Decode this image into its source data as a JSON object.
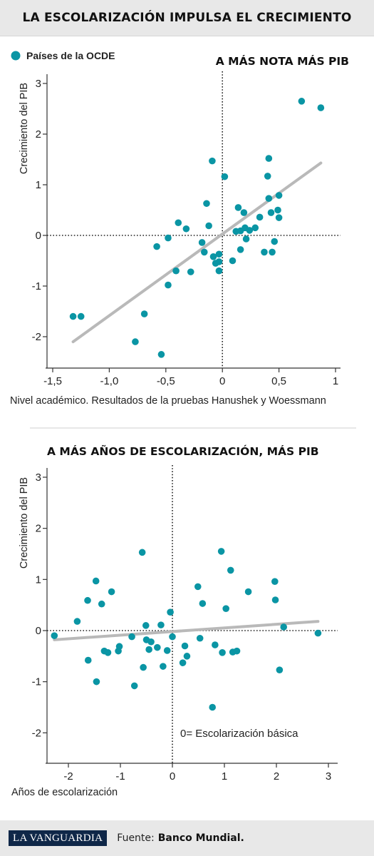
{
  "header": {
    "title": "LA ESCOLARIZACIÓN IMPULSA EL CRECIMIENTO"
  },
  "legend": {
    "label": "Países de la OCDE",
    "color": "#0a95a4"
  },
  "colors": {
    "point": "#0a95a4",
    "trend": "#b9b9b9",
    "axis": "#333333"
  },
  "chart_data": [
    {
      "type": "scatter",
      "title": "A MÁS NOTA MÁS PIB",
      "xlabel": "Nivel académico. Resultados de la pruebas Hanushek y Woessmann",
      "ylabel": "Crecimiento del PIB",
      "xlim": [
        -1.5,
        1.0
      ],
      "ylim": [
        -2.4,
        3.0
      ],
      "xticks": [
        -1.5,
        -1.0,
        -0.5,
        0,
        0.5,
        1
      ],
      "xtick_labels": [
        "-1,5",
        "-1,0",
        "-0,5",
        "0",
        "0,5",
        "1"
      ],
      "yticks": [
        -2,
        -1,
        0,
        1,
        2,
        3
      ],
      "ytick_labels": [
        "-2",
        "-1",
        "0",
        "1",
        "2",
        "3"
      ],
      "trend": {
        "x": [
          -1.32,
          0.87
        ],
        "y": [
          -2.1,
          1.43
        ]
      },
      "points": [
        [
          -1.32,
          -1.6
        ],
        [
          -1.25,
          -1.6
        ],
        [
          -0.77,
          -2.1
        ],
        [
          -0.69,
          -1.55
        ],
        [
          -0.54,
          -2.35
        ],
        [
          -0.58,
          -0.22
        ],
        [
          -0.48,
          -0.05
        ],
        [
          -0.48,
          -0.98
        ],
        [
          -0.41,
          -0.7
        ],
        [
          -0.39,
          0.25
        ],
        [
          -0.32,
          0.13
        ],
        [
          -0.28,
          -0.72
        ],
        [
          -0.18,
          -0.14
        ],
        [
          -0.16,
          -0.33
        ],
        [
          -0.14,
          0.63
        ],
        [
          -0.12,
          0.19
        ],
        [
          -0.09,
          1.47
        ],
        [
          -0.08,
          -0.42
        ],
        [
          -0.06,
          -0.55
        ],
        [
          -0.03,
          -0.7
        ],
        [
          -0.03,
          -0.52
        ],
        [
          -0.03,
          -0.37
        ],
        [
          0.02,
          1.16
        ],
        [
          0.09,
          -0.5
        ],
        [
          0.12,
          0.08
        ],
        [
          0.14,
          0.55
        ],
        [
          0.16,
          -0.28
        ],
        [
          0.16,
          0.09
        ],
        [
          0.19,
          0.45
        ],
        [
          0.2,
          0.15
        ],
        [
          0.21,
          -0.07
        ],
        [
          0.24,
          0.1
        ],
        [
          0.29,
          0.15
        ],
        [
          0.33,
          0.36
        ],
        [
          0.37,
          -0.33
        ],
        [
          0.4,
          1.17
        ],
        [
          0.41,
          1.52
        ],
        [
          0.41,
          0.73
        ],
        [
          0.43,
          0.45
        ],
        [
          0.44,
          -0.33
        ],
        [
          0.46,
          -0.12
        ],
        [
          0.49,
          0.5
        ],
        [
          0.5,
          0.35
        ],
        [
          0.5,
          0.79
        ],
        [
          0.7,
          2.65
        ],
        [
          0.87,
          2.52
        ]
      ]
    },
    {
      "type": "scatter",
      "title": "A MÁS AÑOS DE ESCOLARIZACIÓN, MÁS PIB",
      "xlabel": "Años de escolarización",
      "ylabel": "Crecimiento del PIB",
      "xlim": [
        -2.4,
        3.2
      ],
      "ylim": [
        -2.4,
        3.2
      ],
      "xticks": [
        -2,
        -1,
        0,
        1,
        2,
        3
      ],
      "xtick_labels": [
        "-2",
        "-1",
        "0",
        "1",
        "2",
        "3"
      ],
      "yticks": [
        -2,
        -1,
        0,
        1,
        2,
        3
      ],
      "ytick_labels": [
        "-2",
        "-1",
        "0",
        "1",
        "2",
        "3"
      ],
      "annotation": "0= Escolarización básica",
      "trend": {
        "x": [
          -2.27,
          2.8
        ],
        "y": [
          -0.18,
          0.18
        ]
      },
      "points": [
        [
          -2.27,
          -0.1
        ],
        [
          -1.83,
          0.18
        ],
        [
          -1.63,
          0.59
        ],
        [
          -1.62,
          -0.58
        ],
        [
          -1.47,
          0.97
        ],
        [
          -1.46,
          -1.0
        ],
        [
          -1.36,
          0.52
        ],
        [
          -1.31,
          -0.4
        ],
        [
          -1.24,
          -0.43
        ],
        [
          -1.17,
          0.76
        ],
        [
          -1.04,
          -0.4
        ],
        [
          -1.02,
          -0.31
        ],
        [
          -0.78,
          -0.12
        ],
        [
          -0.73,
          -1.08
        ],
        [
          -0.58,
          1.53
        ],
        [
          -0.56,
          -0.72
        ],
        [
          -0.51,
          0.1
        ],
        [
          -0.5,
          -0.18
        ],
        [
          -0.45,
          -0.37
        ],
        [
          -0.41,
          -0.22
        ],
        [
          -0.29,
          -0.33
        ],
        [
          -0.22,
          0.11
        ],
        [
          -0.18,
          -0.7
        ],
        [
          -0.1,
          -0.39
        ],
        [
          -0.04,
          0.36
        ],
        [
          0.0,
          -0.12
        ],
        [
          0.2,
          -0.63
        ],
        [
          0.24,
          -0.3
        ],
        [
          0.28,
          -0.5
        ],
        [
          0.49,
          0.86
        ],
        [
          0.53,
          -0.15
        ],
        [
          0.58,
          0.53
        ],
        [
          0.77,
          -1.5
        ],
        [
          0.82,
          -0.28
        ],
        [
          0.94,
          1.55
        ],
        [
          0.96,
          -0.43
        ],
        [
          1.03,
          0.43
        ],
        [
          1.12,
          1.18
        ],
        [
          1.16,
          -0.42
        ],
        [
          1.24,
          -0.4
        ],
        [
          1.46,
          0.76
        ],
        [
          1.97,
          0.96
        ],
        [
          1.98,
          0.6
        ],
        [
          2.06,
          -0.77
        ],
        [
          2.14,
          0.07
        ],
        [
          2.8,
          -0.05
        ]
      ]
    }
  ],
  "footer": {
    "brand": "LA VANGUARDIA",
    "source_label": "Fuente:",
    "source_value": "Banco Mundial."
  }
}
